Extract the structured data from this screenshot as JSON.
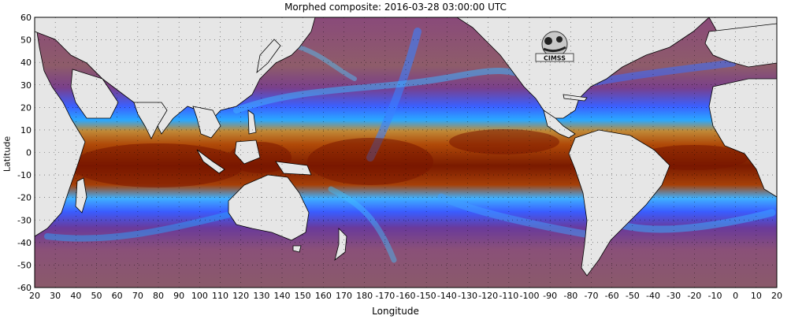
{
  "map": {
    "title": "Morphed composite: 2016-03-28 03:00:00 UTC",
    "xlabel": "Longitude",
    "ylabel": "Latitude",
    "lat_ticks": [
      "60",
      "50",
      "40",
      "30",
      "20",
      "10",
      "0",
      "-10",
      "-20",
      "-30",
      "-40",
      "-50",
      "-60"
    ],
    "lon_ticks": [
      "20",
      "30",
      "40",
      "50",
      "60",
      "70",
      "80",
      "90",
      "100",
      "110",
      "120",
      "130",
      "140",
      "150",
      "160",
      "170",
      "180",
      "-170",
      "-160",
      "-150",
      "-140",
      "-130",
      "-120",
      "-110",
      "-100",
      "-90",
      "-80",
      "-70",
      "-60",
      "-50",
      "-40",
      "-30",
      "-20",
      "-10",
      "0",
      "10",
      "20"
    ],
    "logo_text": "CIMSS",
    "colors": {
      "land": "#e6e6e6",
      "dry": "#8a3a78",
      "mid": "#2060ff",
      "moist": "#a04000",
      "very_moist": "#7a1500",
      "coast": "#000000"
    }
  }
}
